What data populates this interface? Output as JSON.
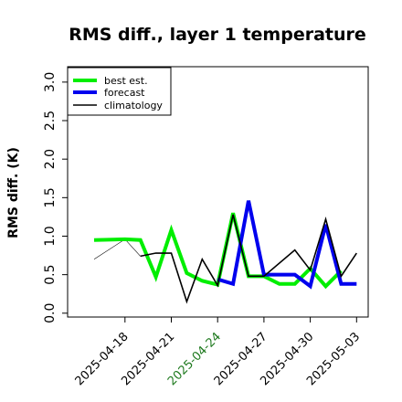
{
  "chart_data": {
    "type": "line",
    "title": "RMS diff., layer 1 temperature",
    "ylabel": "RMS diff. (K)",
    "xlabel": "",
    "ylim": [
      -0.05,
      3.2
    ],
    "yticks": [
      "0.0",
      "0.5",
      "1.0",
      "1.5",
      "2.0",
      "2.5",
      "3.0"
    ],
    "xticks": [
      "2025-04-18",
      "2025-04-21",
      "2025-04-24",
      "2025-04-27",
      "2025-04-30",
      "2025-05-03"
    ],
    "highlight_tick": "2025-04-24",
    "highlight_color": "#1f7a1f",
    "legend": {
      "position": "top-left"
    },
    "series": [
      {
        "name": "best est.",
        "color": "#00ee00",
        "x": [
          "2025-04-16",
          "2025-04-18",
          "2025-04-19",
          "2025-04-20",
          "2025-04-21",
          "2025-04-22",
          "2025-04-23",
          "2025-04-24",
          "2025-04-25",
          "2025-04-26",
          "2025-04-27",
          "2025-04-28",
          "2025-04-29",
          "2025-04-30",
          "2025-05-01",
          "2025-05-02",
          "2025-05-03"
        ],
        "values": [
          0.95,
          0.96,
          0.95,
          0.47,
          1.08,
          0.52,
          0.42,
          0.37,
          1.3,
          0.48,
          0.48,
          0.38,
          0.38,
          0.58,
          0.35,
          0.55,
          null
        ]
      },
      {
        "name": "forecast",
        "color": "#0000ee",
        "x": [
          "2025-04-24",
          "2025-04-25",
          "2025-04-26",
          "2025-04-27",
          "2025-04-28",
          "2025-04-29",
          "2025-04-30",
          "2025-05-01",
          "2025-05-02",
          "2025-05-03"
        ],
        "values": [
          0.44,
          0.38,
          1.46,
          0.5,
          0.5,
          0.5,
          0.35,
          1.15,
          0.38,
          0.38
        ]
      },
      {
        "name": "climatology",
        "color": "#000000",
        "x": [
          "2025-04-19",
          "2025-04-20",
          "2025-04-21",
          "2025-04-22",
          "2025-04-23",
          "2025-04-24",
          "2025-04-25",
          "2025-04-26",
          "2025-04-27",
          "2025-04-29",
          "2025-04-30",
          "2025-05-01",
          "2025-05-02",
          "2025-05-03"
        ],
        "values": [
          0.74,
          0.78,
          0.78,
          0.15,
          0.7,
          0.36,
          1.28,
          0.48,
          0.48,
          0.82,
          0.56,
          1.22,
          0.48,
          0.78
        ]
      }
    ],
    "gap_lines": {
      "color": "#000000",
      "segments": [
        {
          "x": [
            "2025-04-16",
            "2025-04-18",
            "2025-04-19"
          ],
          "values": [
            0.7,
            0.96,
            0.74
          ]
        },
        {
          "x": [
            "2025-04-27",
            "2025-04-29"
          ],
          "values": [
            0.48,
            0.82
          ]
        }
      ]
    }
  }
}
